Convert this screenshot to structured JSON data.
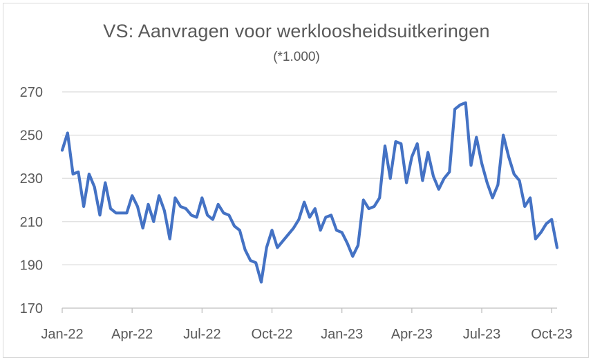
{
  "chart_data": {
    "type": "line",
    "title": "VS: Aanvragen voor werkloosheidsuitkeringen",
    "subtitle": "(*1.000)",
    "xlabel": "",
    "ylabel": "",
    "ylim": [
      170,
      270
    ],
    "yticks": [
      "270",
      "250",
      "230",
      "210",
      "190",
      "170"
    ],
    "xticks": [
      "Jan-22",
      "Apr-22",
      "Jul-22",
      "Oct-22",
      "Jan-23",
      "Apr-23",
      "Jul-23",
      "Oct-23"
    ],
    "grid": true,
    "legend": "none",
    "series": [
      {
        "color": "#4472c4",
        "values": [
          243,
          251,
          232,
          233,
          217,
          232,
          226,
          213,
          228,
          216,
          214,
          214,
          214,
          222,
          217,
          207,
          218,
          210,
          222,
          215,
          202,
          221,
          217,
          216,
          213,
          212,
          221,
          213,
          211,
          218,
          214,
          213,
          208,
          206,
          197,
          192,
          191,
          182,
          198,
          206,
          198,
          201,
          204,
          207,
          211,
          219,
          212,
          216,
          206,
          212,
          213,
          206,
          205,
          200,
          194,
          199,
          220,
          216,
          217,
          221,
          245,
          230,
          247,
          246,
          228,
          240,
          246,
          229,
          242,
          231,
          225,
          230,
          233,
          262,
          264,
          265,
          236,
          249,
          237,
          228,
          221,
          227,
          250,
          240,
          232,
          229,
          217,
          221,
          202,
          205,
          209,
          211,
          198
        ]
      }
    ]
  }
}
